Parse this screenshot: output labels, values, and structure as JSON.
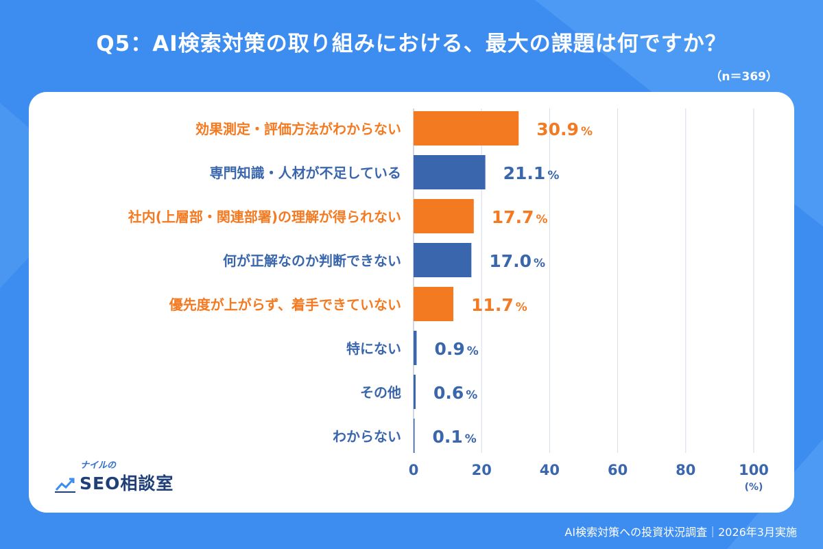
{
  "title": "Q5：AI検索対策の取り組みにおける、最大の課題は何ですか？",
  "sample": "（n＝369）",
  "footer": "AI検索対策への投資状況調査｜2026年3月実施",
  "logo": {
    "small": "ナイルの",
    "main": "SEO相談室",
    "icon": "trend-chart-icon"
  },
  "colors": {
    "background": "#3d8df0",
    "orange": "#f47a22",
    "blue": "#3a66ad",
    "axis": "#3a66ad",
    "grid": "#d6dde8"
  },
  "chart_data": {
    "type": "bar",
    "orientation": "horizontal",
    "categories": [
      "効果測定・評価方法がわからない",
      "専門知識・人材が不足している",
      "社内(上層部・関連部署)の理解が得られない",
      "何が正解なのか判断できない",
      "優先度が上がらず、着手できていない",
      "特にない",
      "その他",
      "わからない"
    ],
    "values": [
      30.9,
      21.1,
      17.7,
      17.0,
      11.7,
      0.9,
      0.6,
      0.1
    ],
    "value_labels": [
      "30.9",
      "21.1",
      "17.7",
      "17.0",
      "11.7",
      "0.9",
      "0.6",
      "0.1"
    ],
    "value_suffix": "%",
    "highlight": [
      true,
      false,
      true,
      false,
      true,
      false,
      false,
      false
    ],
    "xlim": [
      0,
      100
    ],
    "xticks": [
      0,
      20,
      40,
      60,
      80,
      100
    ],
    "xtick_labels": [
      "0",
      "20",
      "40",
      "60",
      "80",
      "100"
    ],
    "xlabel": "(%)",
    "grid": true
  }
}
